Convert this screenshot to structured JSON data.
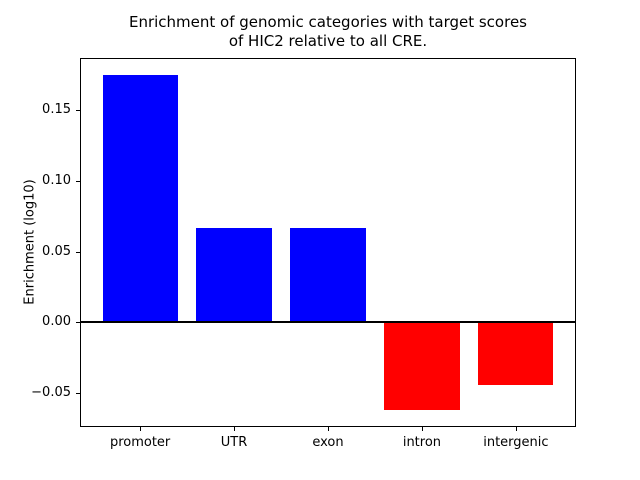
{
  "chart_data": {
    "type": "bar",
    "title": "Enrichment of genomic categories with target scores of HIC2 relative to all CRE.",
    "title_lines": [
      "Enrichment of genomic categories with target scores",
      "of HIC2 relative to all CRE."
    ],
    "ylabel": "Enrichment (log10)",
    "xlabel": "",
    "categories": [
      "promoter",
      "UTR",
      "exon",
      "intron",
      "intergenic"
    ],
    "values": [
      0.175,
      0.067,
      0.067,
      -0.062,
      -0.044
    ],
    "bar_colors": [
      "#0000ff",
      "#0000ff",
      "#0000ff",
      "#ff0000",
      "#ff0000"
    ],
    "positive_color": "#0000ff",
    "negative_color": "#ff0000",
    "ylim": [
      -0.074,
      0.187
    ],
    "yticks": [
      -0.05,
      0.0,
      0.05,
      0.1,
      0.15
    ],
    "ytick_labels": [
      "−0.05",
      "0.00",
      "0.05",
      "0.10",
      "0.15"
    ],
    "zero_line": true,
    "grid": false,
    "legend": null
  }
}
